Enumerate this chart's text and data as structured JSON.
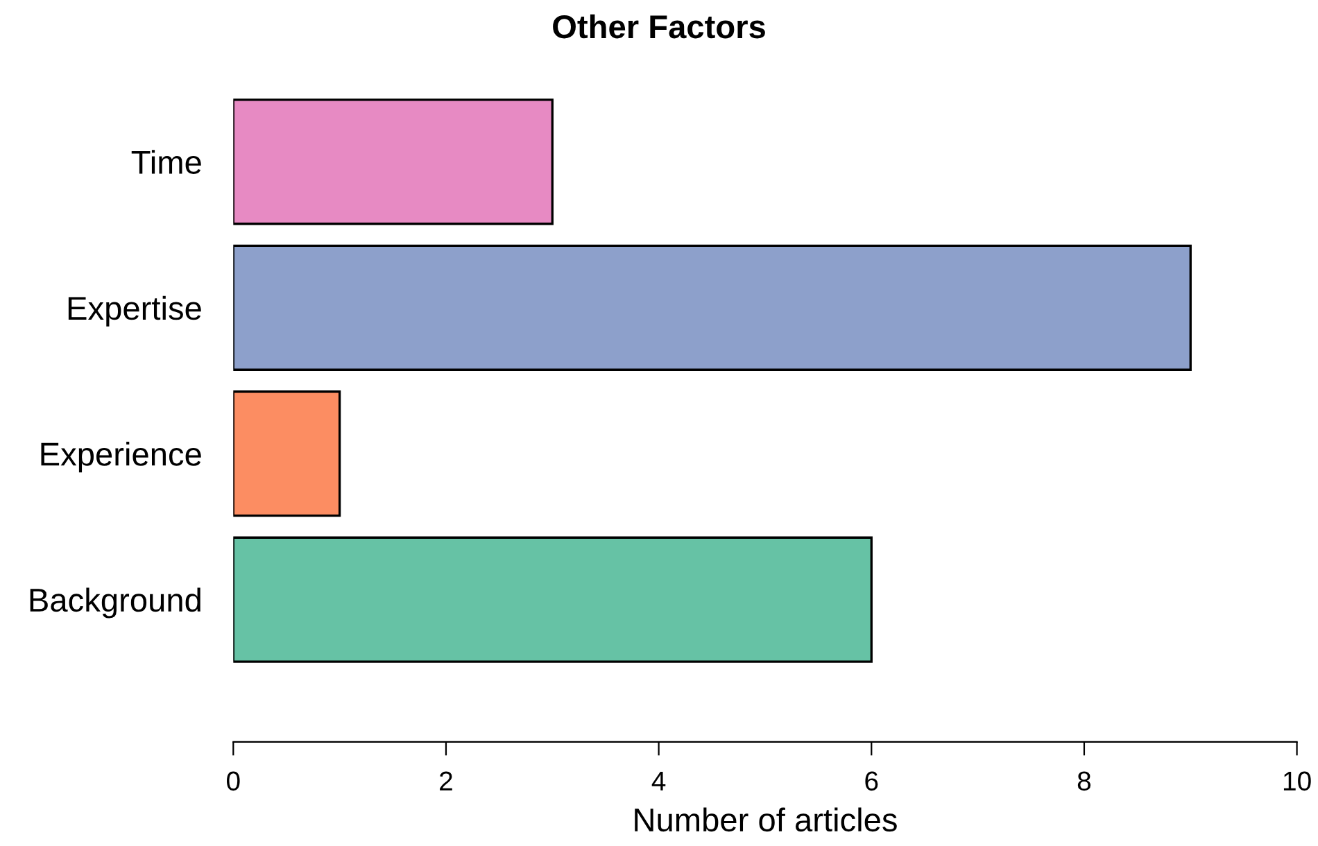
{
  "chart_data": {
    "type": "bar",
    "orientation": "horizontal",
    "title": "Other Factors",
    "xlabel": "Number of articles",
    "categories": [
      "Time",
      "Expertise",
      "Experience",
      "Background"
    ],
    "values": [
      3,
      9,
      1,
      6
    ],
    "colors": [
      "#e78ac3",
      "#8da0cb",
      "#fc8d62",
      "#66c2a5"
    ],
    "xlim": [
      0,
      10
    ],
    "xticks": [
      0,
      2,
      4,
      6,
      8,
      10
    ],
    "grid": false,
    "legend": false
  }
}
